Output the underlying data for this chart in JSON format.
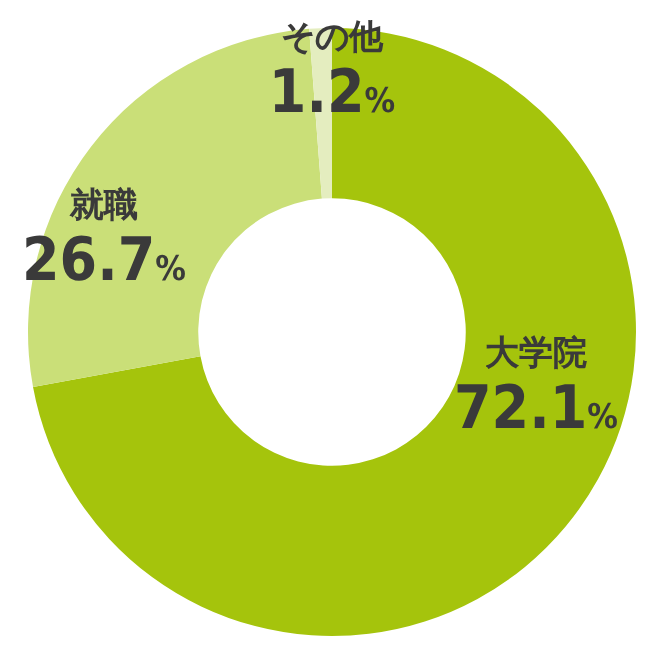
{
  "chart_data": {
    "type": "donut",
    "categories": [
      "大学院",
      "就職",
      "その他"
    ],
    "values": [
      72.1,
      26.7,
      1.2
    ],
    "colors": [
      "#a5c40c",
      "#cadf78",
      "#e4edbf"
    ],
    "value_labels": [
      "72.1%",
      "26.7%",
      "1.2%"
    ]
  }
}
